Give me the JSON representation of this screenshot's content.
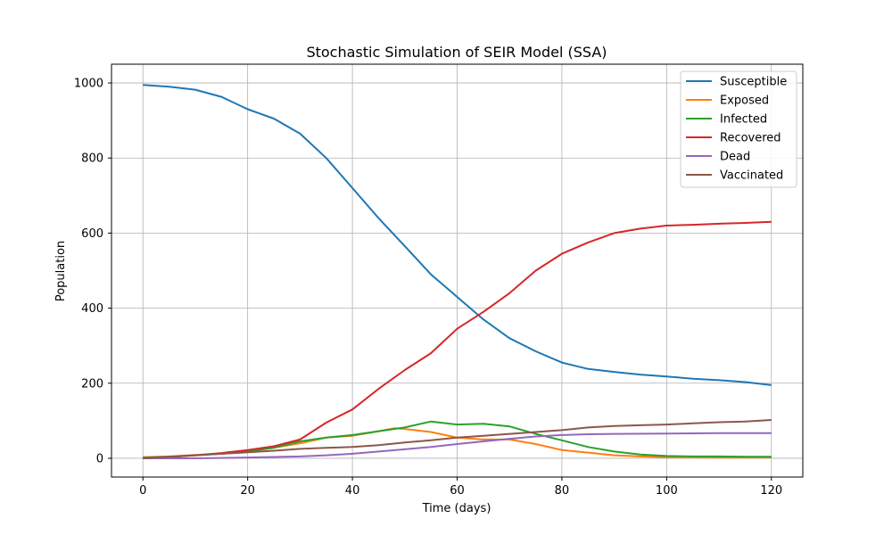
{
  "chart_data": {
    "type": "line",
    "title": "Stochastic Simulation of SEIR Model (SSA)",
    "xlabel": "Time (days)",
    "ylabel": "Population",
    "xlim": [
      -6,
      126
    ],
    "ylim": [
      -50,
      1050
    ],
    "xticks": [
      0,
      20,
      40,
      60,
      80,
      100,
      120
    ],
    "yticks": [
      0,
      200,
      400,
      600,
      800,
      1000
    ],
    "grid": true,
    "legend_position": "top-right",
    "series": [
      {
        "name": "Susceptible",
        "color": "#1f77b4",
        "points": [
          [
            0,
            995
          ],
          [
            5,
            990
          ],
          [
            10,
            982
          ],
          [
            15,
            963
          ],
          [
            20,
            930
          ],
          [
            25,
            905
          ],
          [
            30,
            865
          ],
          [
            35,
            800
          ],
          [
            40,
            720
          ],
          [
            45,
            640
          ],
          [
            50,
            565
          ],
          [
            55,
            490
          ],
          [
            60,
            430
          ],
          [
            65,
            370
          ],
          [
            70,
            320
          ],
          [
            75,
            285
          ],
          [
            80,
            255
          ],
          [
            85,
            238
          ],
          [
            90,
            230
          ],
          [
            95,
            223
          ],
          [
            100,
            218
          ],
          [
            105,
            212
          ],
          [
            110,
            208
          ],
          [
            115,
            203
          ],
          [
            120,
            195
          ]
        ]
      },
      {
        "name": "Exposed",
        "color": "#ff7f0e",
        "points": [
          [
            0,
            3
          ],
          [
            5,
            5
          ],
          [
            10,
            9
          ],
          [
            15,
            12
          ],
          [
            20,
            20
          ],
          [
            25,
            28
          ],
          [
            30,
            40
          ],
          [
            35,
            55
          ],
          [
            40,
            60
          ],
          [
            45,
            72
          ],
          [
            48,
            80
          ],
          [
            50,
            78
          ],
          [
            55,
            70
          ],
          [
            60,
            55
          ],
          [
            65,
            50
          ],
          [
            70,
            50
          ],
          [
            75,
            38
          ],
          [
            80,
            22
          ],
          [
            85,
            15
          ],
          [
            90,
            8
          ],
          [
            95,
            5
          ],
          [
            100,
            3
          ],
          [
            105,
            3
          ],
          [
            110,
            2
          ],
          [
            115,
            2
          ],
          [
            120,
            2
          ]
        ]
      },
      {
        "name": "Infected",
        "color": "#2ca02c",
        "points": [
          [
            0,
            2
          ],
          [
            5,
            4
          ],
          [
            10,
            8
          ],
          [
            15,
            12
          ],
          [
            20,
            18
          ],
          [
            25,
            28
          ],
          [
            30,
            45
          ],
          [
            35,
            55
          ],
          [
            40,
            62
          ],
          [
            45,
            72
          ],
          [
            50,
            82
          ],
          [
            55,
            98
          ],
          [
            60,
            90
          ],
          [
            65,
            92
          ],
          [
            70,
            85
          ],
          [
            75,
            65
          ],
          [
            80,
            48
          ],
          [
            85,
            30
          ],
          [
            90,
            18
          ],
          [
            95,
            10
          ],
          [
            100,
            6
          ],
          [
            105,
            5
          ],
          [
            110,
            5
          ],
          [
            115,
            4
          ],
          [
            120,
            4
          ]
        ]
      },
      {
        "name": "Recovered",
        "color": "#d62728",
        "points": [
          [
            0,
            0
          ],
          [
            5,
            3
          ],
          [
            10,
            8
          ],
          [
            15,
            14
          ],
          [
            20,
            22
          ],
          [
            25,
            32
          ],
          [
            30,
            50
          ],
          [
            35,
            95
          ],
          [
            40,
            130
          ],
          [
            45,
            185
          ],
          [
            50,
            235
          ],
          [
            55,
            280
          ],
          [
            60,
            345
          ],
          [
            65,
            390
          ],
          [
            70,
            440
          ],
          [
            75,
            500
          ],
          [
            80,
            545
          ],
          [
            85,
            575
          ],
          [
            90,
            600
          ],
          [
            95,
            612
          ],
          [
            100,
            620
          ],
          [
            105,
            622
          ],
          [
            110,
            625
          ],
          [
            115,
            627
          ],
          [
            120,
            630
          ]
        ]
      },
      {
        "name": "Dead",
        "color": "#9467bd",
        "points": [
          [
            0,
            0
          ],
          [
            10,
            0
          ],
          [
            20,
            2
          ],
          [
            30,
            5
          ],
          [
            35,
            8
          ],
          [
            40,
            12
          ],
          [
            45,
            18
          ],
          [
            50,
            24
          ],
          [
            55,
            30
          ],
          [
            60,
            38
          ],
          [
            65,
            45
          ],
          [
            70,
            52
          ],
          [
            75,
            58
          ],
          [
            80,
            62
          ],
          [
            85,
            64
          ],
          [
            90,
            65
          ],
          [
            100,
            66
          ],
          [
            110,
            67
          ],
          [
            120,
            67
          ]
        ]
      },
      {
        "name": "Vaccinated",
        "color": "#8c564b",
        "points": [
          [
            0,
            0
          ],
          [
            5,
            4
          ],
          [
            10,
            8
          ],
          [
            15,
            12
          ],
          [
            20,
            16
          ],
          [
            25,
            20
          ],
          [
            30,
            25
          ],
          [
            35,
            28
          ],
          [
            40,
            30
          ],
          [
            45,
            35
          ],
          [
            50,
            42
          ],
          [
            55,
            48
          ],
          [
            60,
            55
          ],
          [
            65,
            60
          ],
          [
            70,
            65
          ],
          [
            75,
            70
          ],
          [
            80,
            75
          ],
          [
            85,
            82
          ],
          [
            90,
            86
          ],
          [
            95,
            88
          ],
          [
            100,
            90
          ],
          [
            105,
            93
          ],
          [
            110,
            96
          ],
          [
            115,
            98
          ],
          [
            120,
            102
          ]
        ]
      }
    ]
  }
}
